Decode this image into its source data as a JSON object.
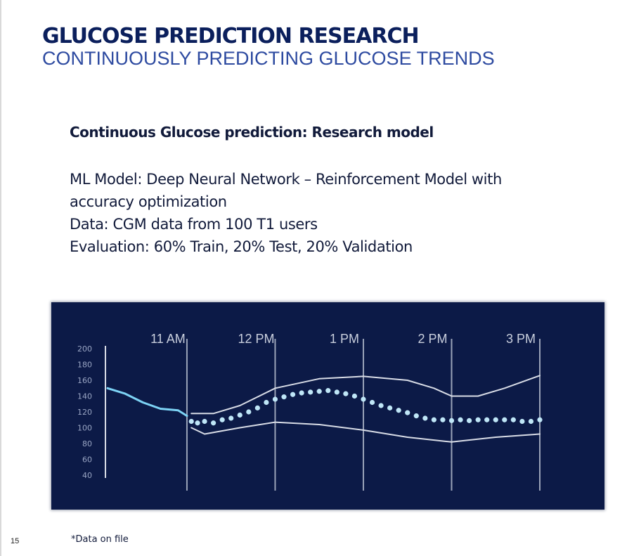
{
  "slide": {
    "title": "GLUCOSE PREDICTION RESEARCH",
    "subtitle": "CONTINUOUSLY PREDICTING GLUCOSE TRENDS",
    "section_heading": "Continuous Glucose prediction: Research model",
    "body_lines": [
      "ML Model: Deep Neural Network – Reinforcement Model with",
      "accuracy optimization",
      "Data: CGM data from 100 T1 users",
      "Evaluation: 60% Train, 20% Test, 20% Validation"
    ],
    "footnote": "*Data on file",
    "page_number": "15"
  },
  "colors": {
    "title": "#0b1f5c",
    "subtitle": "#2d4aa0",
    "chart_background": "#0c1a47",
    "history_line": "#7dd3f5",
    "prediction_dots": "#bfe6f7",
    "band_and_gridlines": "#d8dce6"
  },
  "chart_data": {
    "type": "line",
    "title": "",
    "xlabel": "",
    "ylabel": "",
    "ylim": [
      40,
      200
    ],
    "yticks": [
      200,
      180,
      160,
      140,
      120,
      100,
      80,
      60,
      40
    ],
    "xlim": [
      10.1,
      15.0
    ],
    "time_markers": [
      {
        "label": "11 AM",
        "x": 11.0
      },
      {
        "label": "12 PM",
        "x": 12.0
      },
      {
        "label": "1 PM",
        "x": 13.0
      },
      {
        "label": "2 PM",
        "x": 14.0
      },
      {
        "label": "3 PM",
        "x": 15.0
      }
    ],
    "series": [
      {
        "style": "solid-line",
        "x": [
          10.1,
          10.3,
          10.5,
          10.7,
          10.9,
          11.0
        ],
        "y": [
          150,
          143,
          132,
          124,
          122,
          115
        ]
      },
      {
        "style": "dotted",
        "x": [
          11.05,
          11.12,
          11.2,
          11.3,
          11.4,
          11.5,
          11.6,
          11.7,
          11.8,
          11.9,
          12.0,
          12.1,
          12.2,
          12.3,
          12.4,
          12.5,
          12.6,
          12.7,
          12.8,
          12.9,
          13.0,
          13.1,
          13.2,
          13.3,
          13.4,
          13.5,
          13.6,
          13.7,
          13.8,
          13.9,
          14.0,
          14.1,
          14.2,
          14.3,
          14.4,
          14.5,
          14.6,
          14.7,
          14.8,
          14.9,
          15.0
        ],
        "y": [
          108,
          106,
          108,
          106,
          110,
          112,
          116,
          120,
          125,
          132,
          136,
          139,
          142,
          144,
          145,
          146,
          147,
          145,
          143,
          140,
          136,
          132,
          128,
          125,
          122,
          119,
          115,
          112,
          110,
          110,
          109,
          110,
          109,
          110,
          110,
          110,
          110,
          110,
          108,
          108,
          110
        ]
      },
      {
        "style": "band-upper",
        "x": [
          11.05,
          11.3,
          11.6,
          12.0,
          12.5,
          13.0,
          13.5,
          13.8,
          14.0,
          14.3,
          14.6,
          15.0
        ],
        "y": [
          118,
          118,
          128,
          150,
          162,
          165,
          160,
          150,
          140,
          140,
          150,
          166
        ]
      },
      {
        "style": "band-lower",
        "x": [
          11.05,
          11.2,
          11.6,
          12.0,
          12.5,
          13.0,
          13.5,
          14.0,
          14.5,
          15.0
        ],
        "y": [
          100,
          92,
          100,
          107,
          104,
          97,
          88,
          82,
          88,
          92
        ]
      }
    ]
  }
}
